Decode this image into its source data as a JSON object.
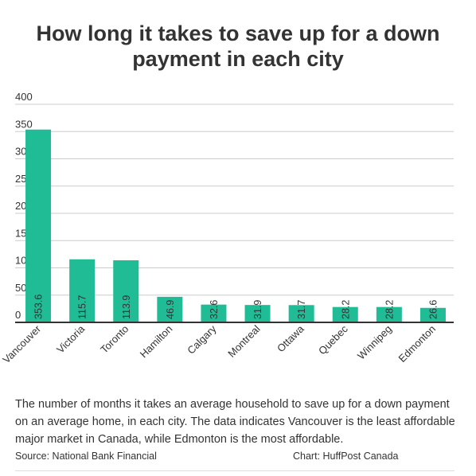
{
  "chart_data": {
    "type": "bar",
    "title": "How long it takes to save up for a down payment in each city",
    "categories": [
      "Vancouver",
      "Victoria",
      "Toronto",
      "Hamilton",
      "Calgary",
      "Montreal",
      "Ottawa",
      "Quebec",
      "Winnipeg",
      "Edmonton"
    ],
    "values": [
      353.6,
      115.7,
      113.9,
      46.9,
      32.6,
      31.9,
      31.7,
      28.2,
      28.2,
      26.6
    ],
    "data_labels": [
      "353.6",
      "115.7",
      "113.9",
      "46.9",
      "32.6",
      "31.9",
      "31.7",
      "28.2",
      "28.2",
      "26.6"
    ],
    "yticks": [
      "0",
      "50",
      "100",
      "150",
      "200",
      "250",
      "300",
      "350",
      "400"
    ],
    "ylim": [
      0,
      400
    ],
    "xlabel": "",
    "ylabel": "",
    "grid": true,
    "bar_color": "#1fbc96"
  },
  "caption": "The number of months it takes an average household to save up for a down payment on an average home, in each city. The data indicates Vancouver is the least affordable major market in Canada, while Edmonton is the most affordable.",
  "source": "Source: National Bank Financial",
  "credit": "Chart: HuffPost Canada"
}
